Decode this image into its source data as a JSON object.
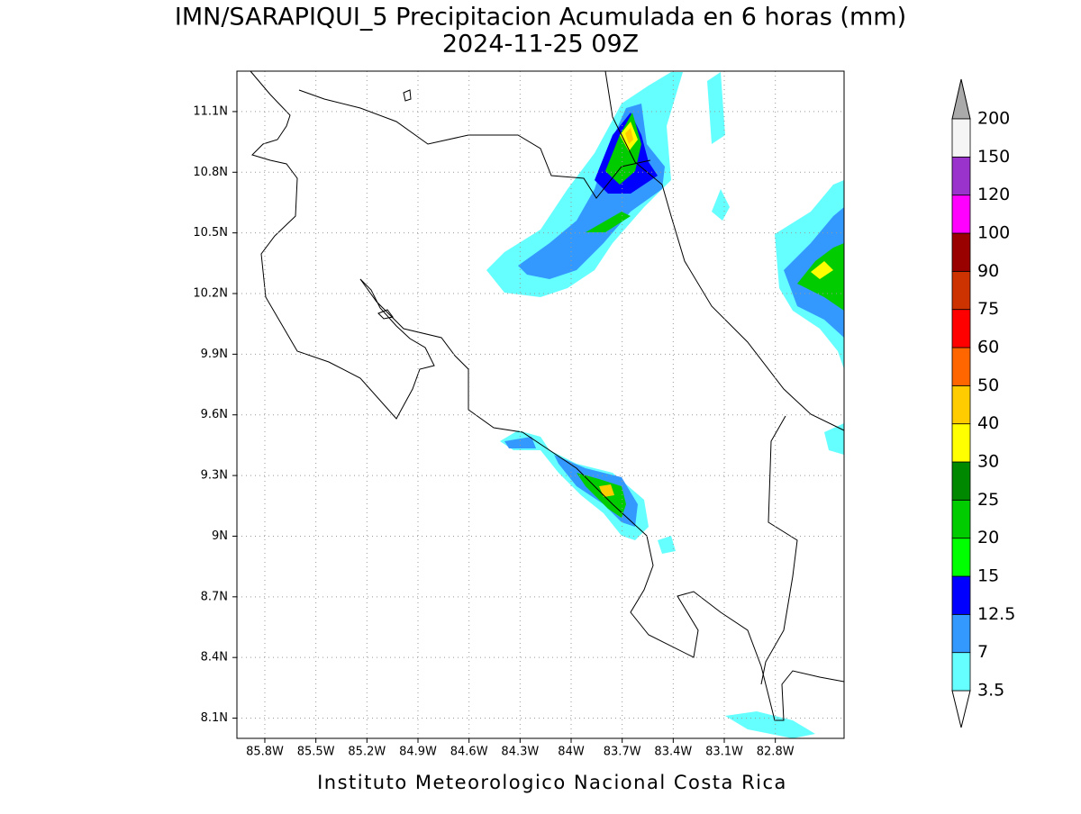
{
  "map": {
    "title": "IMN/SARAPIQUI_5 Precipitacion Acumulada en 6 horas (mm)",
    "subtitle": "2024-11-25 09Z",
    "footer": "Instituto Meteorologico Nacional Costa Rica",
    "lonlim": [
      -85.964,
      -82.396
    ],
    "latlim": [
      8.0,
      11.3
    ],
    "lon_ticks": [
      {
        "value": -85.8,
        "label": "85.8W"
      },
      {
        "value": -85.5,
        "label": "85.5W"
      },
      {
        "value": -85.2,
        "label": "85.2W"
      },
      {
        "value": -84.9,
        "label": "84.9W"
      },
      {
        "value": -84.6,
        "label": "84.6W"
      },
      {
        "value": -84.3,
        "label": "84.3W"
      },
      {
        "value": -84.0,
        "label": "84W"
      },
      {
        "value": -83.7,
        "label": "83.7W"
      },
      {
        "value": -83.4,
        "label": "83.4W"
      },
      {
        "value": -83.1,
        "label": "83.1W"
      },
      {
        "value": -82.8,
        "label": "82.8W"
      }
    ],
    "lat_ticks": [
      {
        "value": 8.1,
        "label": "8.1N"
      },
      {
        "value": 8.4,
        "label": "8.4N"
      },
      {
        "value": 8.7,
        "label": "8.7N"
      },
      {
        "value": 9.0,
        "label": "9N"
      },
      {
        "value": 9.3,
        "label": "9.3N"
      },
      {
        "value": 9.6,
        "label": "9.6N"
      },
      {
        "value": 9.9,
        "label": "9.9N"
      },
      {
        "value": 10.2,
        "label": "10.2N"
      },
      {
        "value": 10.5,
        "label": "10.5N"
      },
      {
        "value": 10.8,
        "label": "10.8N"
      },
      {
        "value": 11.1,
        "label": "11.1N"
      }
    ],
    "grid": true
  },
  "colorbar": {
    "levels": [
      3.5,
      7,
      12.5,
      15,
      20,
      25,
      30,
      40,
      50,
      60,
      75,
      90,
      100,
      120,
      150,
      200
    ],
    "colors": [
      "#66ffff",
      "#3399ff",
      "#0000ff",
      "#00ff00",
      "#00cc00",
      "#008800",
      "#ffff00",
      "#ffcc00",
      "#ff6600",
      "#ff0000",
      "#cc3300",
      "#990000",
      "#ff00ff",
      "#9933cc",
      "#f5f5f5"
    ],
    "under_color": "#ffffff",
    "over_color": "#aaaaaa"
  }
}
